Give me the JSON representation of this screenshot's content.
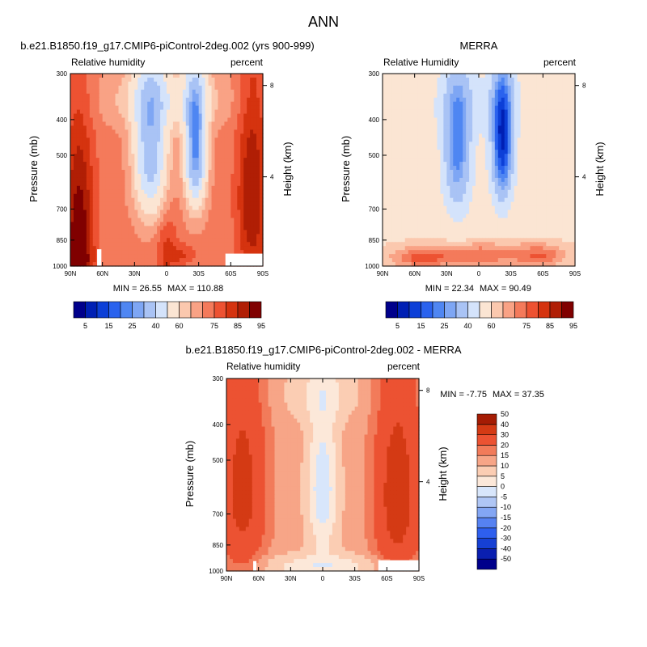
{
  "figure": {
    "title": "ANN"
  },
  "palettes": {
    "absolute": [
      "#00008b",
      "#0020b4",
      "#0c3fd7",
      "#2a62ee",
      "#4f86f2",
      "#7ea6f4",
      "#a9c3f5",
      "#d4e3fb",
      "#fbe5d3",
      "#fbc8ae",
      "#f9a285",
      "#f47a5b",
      "#ed5232",
      "#d5330f",
      "#b01e05",
      "#800000"
    ],
    "difference": [
      "#00008b",
      "#0a1fb0",
      "#1640d4",
      "#2e5fee",
      "#5682f2",
      "#83a6f4",
      "#afc6f5",
      "#d8e6fb",
      "#fce8d9",
      "#fbcdb3",
      "#f7a587",
      "#f27b5a",
      "#ec5232",
      "#d43a14",
      "#a51c04"
    ]
  },
  "chart_data": [
    {
      "type": "heatmap",
      "panel": "model",
      "case_title": "b.e21.B1850.f19_g17.CMIP6-piControl-2deg.002 (yrs 900-999)",
      "variable": "Relative humidity",
      "units": "percent",
      "xlabel": "",
      "ylabel": "Pressure (mb)",
      "ylabel_right": "Height (km)",
      "x_ticks": [
        "90N",
        "60N",
        "30N",
        "0",
        "30S",
        "60S",
        "90S"
      ],
      "xlim": [
        90,
        -90
      ],
      "y_ticks": [
        300,
        400,
        500,
        700,
        850,
        1000
      ],
      "ylim": [
        1000,
        300
      ],
      "y_scale": "log",
      "right_ticks": [
        8,
        4
      ],
      "min_label": "MIN =  26.55",
      "max_label": "MAX = 110.88",
      "levels": [
        5,
        10,
        15,
        20,
        25,
        30,
        40,
        50,
        60,
        65,
        70,
        75,
        80,
        85,
        90,
        95
      ],
      "level_labels": [
        "5",
        "15",
        "25",
        "40",
        "60",
        "75",
        "85",
        "95"
      ],
      "palette": "absolute",
      "missing": [
        [
          65,
          61,
          1000,
          900
        ],
        [
          -55,
          -90,
          1000,
          925
        ]
      ],
      "field": {
        "background": 72,
        "features": [
          {
            "lat": 15,
            "p": 480,
            "dlat": 15,
            "dp": 230,
            "amp": -40
          },
          {
            "lat": -27,
            "p": 470,
            "dlat": 10,
            "dp": 200,
            "amp": -50
          },
          {
            "lat": 0,
            "p": 350,
            "dlat": 55,
            "dp": 70,
            "amp": -14
          },
          {
            "lat": 0,
            "p": 900,
            "dlat": 10,
            "dp": 180,
            "amp": 10
          },
          {
            "lat": -15,
            "p": 930,
            "dlat": 12,
            "dp": 60,
            "amp": 8
          },
          {
            "lat": 82,
            "p": 800,
            "dlat": 14,
            "dp": 450,
            "amp": 22
          },
          {
            "lat": -80,
            "p": 650,
            "dlat": 14,
            "dp": 420,
            "amp": 18
          },
          {
            "lat": 85,
            "p": 980,
            "dlat": 12,
            "dp": 120,
            "amp": 12
          }
        ]
      }
    },
    {
      "type": "heatmap",
      "panel": "obs",
      "case_title": "MERRA",
      "variable": "Relative Humidity",
      "units": "percent",
      "xlabel": "",
      "ylabel": "Pressure (mb)",
      "ylabel_right": "Height (km)",
      "x_ticks": [
        "90N",
        "60N",
        "30N",
        "0",
        "30S",
        "60S",
        "90S"
      ],
      "xlim": [
        90,
        -90
      ],
      "y_ticks": [
        300,
        400,
        500,
        700,
        850,
        1000
      ],
      "ylim": [
        1000,
        300
      ],
      "y_scale": "log",
      "right_ticks": [
        8,
        4
      ],
      "min_label": "MIN =  22.34",
      "max_label": "MAX =  90.49",
      "levels": [
        5,
        10,
        15,
        20,
        25,
        30,
        40,
        50,
        60,
        65,
        70,
        75,
        80,
        85,
        90,
        95
      ],
      "level_labels": [
        "5",
        "15",
        "25",
        "40",
        "60",
        "75",
        "85",
        "95"
      ],
      "palette": "absolute",
      "missing": [],
      "field": {
        "background": 58,
        "features": [
          {
            "lat": 20,
            "p": 480,
            "dlat": 14,
            "dp": 230,
            "amp": -36
          },
          {
            "lat": -22,
            "p": 460,
            "dlat": 11,
            "dp": 210,
            "amp": -48
          },
          {
            "lat": 0,
            "p": 360,
            "dlat": 60,
            "dp": 80,
            "amp": -8
          },
          {
            "lat": 0,
            "p": 930,
            "dlat": 70,
            "dp": 70,
            "amp": 16
          },
          {
            "lat": 55,
            "p": 960,
            "dlat": 25,
            "dp": 60,
            "amp": 12
          },
          {
            "lat": -60,
            "p": 940,
            "dlat": 20,
            "dp": 70,
            "amp": 10
          }
        ]
      }
    },
    {
      "type": "heatmap",
      "panel": "diff",
      "case_title": "b.e21.B1850.f19_g17.CMIP6-piControl-2deg.002 - MERRA",
      "variable": "Relative humidity",
      "units": "percent",
      "xlabel": "",
      "ylabel": "Pressure (mb)",
      "ylabel_right": "Height (km)",
      "x_ticks": [
        "90N",
        "60N",
        "30N",
        "0",
        "30S",
        "60S",
        "90S"
      ],
      "xlim": [
        90,
        -90
      ],
      "y_ticks": [
        300,
        400,
        500,
        700,
        850,
        1000
      ],
      "ylim": [
        1000,
        300
      ],
      "y_scale": "log",
      "right_ticks": [
        8,
        4
      ],
      "min_label": "MIN =  -7.75",
      "max_label": "MAX =  37.35",
      "levels": [
        -50,
        -40,
        -30,
        -20,
        -15,
        -10,
        -5,
        0,
        5,
        10,
        15,
        20,
        30,
        40,
        50
      ],
      "level_labels": [
        "50",
        "40",
        "30",
        "20",
        "15",
        "10",
        "5",
        "0",
        "-5",
        "-10",
        "-15",
        "-20",
        "-30",
        "-40",
        "-50"
      ],
      "palette": "difference",
      "missing": [
        [
          65,
          62,
          1000,
          940
        ],
        [
          -52,
          -90,
          1000,
          935
        ]
      ],
      "field": {
        "background": 12,
        "features": [
          {
            "lat": 0,
            "p": 600,
            "dlat": 14,
            "dp": 280,
            "amp": -16
          },
          {
            "lat": 75,
            "p": 600,
            "dlat": 22,
            "dp": 420,
            "amp": 22
          },
          {
            "lat": -70,
            "p": 620,
            "dlat": 22,
            "dp": 420,
            "amp": 24
          },
          {
            "lat": 0,
            "p": 970,
            "dlat": 70,
            "dp": 70,
            "amp": -10
          },
          {
            "lat": 0,
            "p": 330,
            "dlat": 40,
            "dp": 60,
            "amp": -6
          }
        ]
      }
    }
  ]
}
